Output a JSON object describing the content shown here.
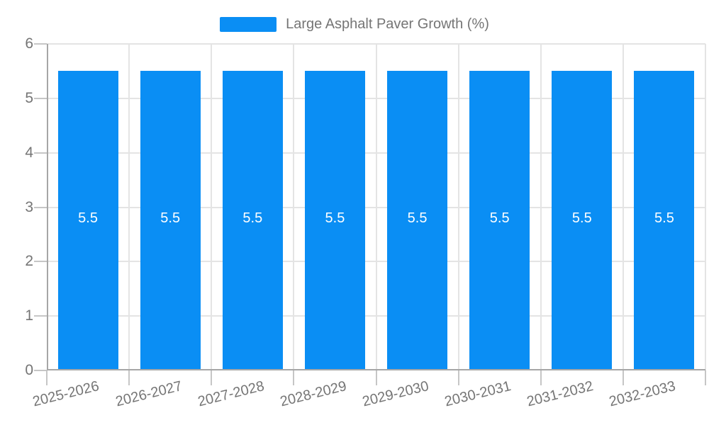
{
  "chart_data": {
    "type": "bar",
    "title": "Large Asphalt Paver Growth (%)",
    "legend": [
      {
        "label": "Large Asphalt Paver Growth (%)",
        "color": "#0A8EF4"
      }
    ],
    "legend_position": "top-center",
    "categories": [
      "2025-2026",
      "2026-2027",
      "2027-2028",
      "2028-2029",
      "2029-2030",
      "2030-2031",
      "2031-2032",
      "2032-2033"
    ],
    "series": [
      {
        "name": "Large Asphalt Paver Growth (%)",
        "values": [
          5.5,
          5.5,
          5.5,
          5.5,
          5.5,
          5.5,
          5.5,
          5.5
        ]
      }
    ],
    "xlabel": "",
    "ylabel": "",
    "ylim": [
      0,
      6
    ],
    "yticks": [
      0,
      1,
      2,
      3,
      4,
      5,
      6
    ],
    "grid": true,
    "bar_value_labels_shown": true,
    "x_tick_rotation_deg": -14,
    "colors": {
      "bar": "#0A8EF4",
      "bar_value_text": "#FFFFFF",
      "axis_text": "#757575",
      "grid_line": "#E4E4E4",
      "axis_line": "#A6A6A6",
      "tick_line": "#C6C6C6",
      "background": "#FFFFFF"
    }
  }
}
